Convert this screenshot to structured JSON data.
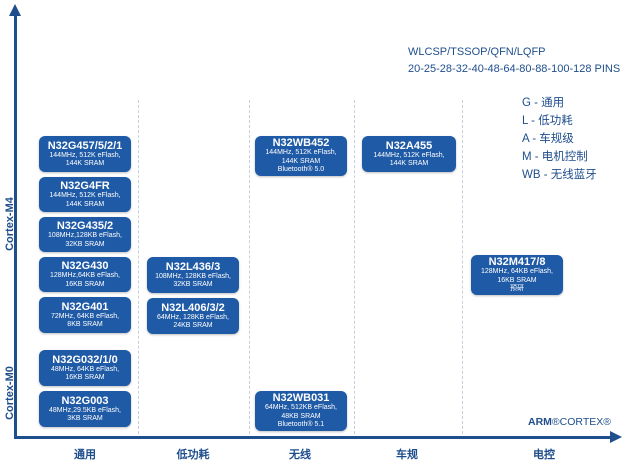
{
  "y_axis": {
    "m4_label": "Cortex-M4",
    "m0_label": "Cortex-M0"
  },
  "x_axis": {
    "categories": [
      "通用",
      "低功耗",
      "无线",
      "车规",
      "电控"
    ]
  },
  "packages": {
    "line1": "WLCSP/TSSOP/QFN/LQFP",
    "line2": "20-25-28-32-40-48-64-80-88-100-128 PINS"
  },
  "legend": [
    "G - 通用",
    "L - 低功耗",
    "A - 车规级",
    "M - 电机控制",
    "WB - 无线蓝牙"
  ],
  "brand": {
    "arm": "ARM",
    "cortex": "CORTEX"
  },
  "chips": [
    {
      "name": "N32G457/5/2/1",
      "specs": [
        "144MHz, 512K eFlash,",
        "144K SRAM"
      ]
    },
    {
      "name": "N32G4FR",
      "specs": [
        "144MHz, 512K eFlash,",
        "144K SRAM"
      ]
    },
    {
      "name": "N32G435/2",
      "specs": [
        "108MHz,128KB eFlash,",
        "32KB SRAM"
      ]
    },
    {
      "name": "N32G430",
      "specs": [
        "128MHz,64KB eFlash,",
        "16KB SRAM"
      ]
    },
    {
      "name": "N32G401",
      "specs": [
        "72MHz, 64KB eFlash,",
        "8KB SRAM"
      ]
    },
    {
      "name": "N32G032/1/0",
      "specs": [
        "48MHz, 64KB eFlash,",
        "16KB SRAM"
      ]
    },
    {
      "name": "N32G003",
      "specs": [
        "48MHz,29.5KB eFlash,",
        "3KB SRAM"
      ]
    },
    {
      "name": "N32L436/3",
      "specs": [
        "108MHz, 128KB eFlash,",
        "32KB SRAM"
      ]
    },
    {
      "name": "N32L406/3/2",
      "specs": [
        "64MHz, 128KB eFlash,",
        "24KB SRAM"
      ]
    },
    {
      "name": "N32WB452",
      "specs": [
        "144MHz, 512K eFlash,",
        "144K SRAM",
        "Bluetooth® 5.0"
      ]
    },
    {
      "name": "N32WB031",
      "specs": [
        "64MHz, 512KB eFlash,",
        "48KB SRAM",
        "Bluetooth® 5.1"
      ]
    },
    {
      "name": "N32A455",
      "specs": [
        "144MHz, 512K eFlash,",
        "144K SRAM"
      ]
    },
    {
      "name": "N32M417/8",
      "specs": [
        "128MHz, 64KB eFlash,",
        "16KB SRAM",
        "预研"
      ]
    }
  ]
}
